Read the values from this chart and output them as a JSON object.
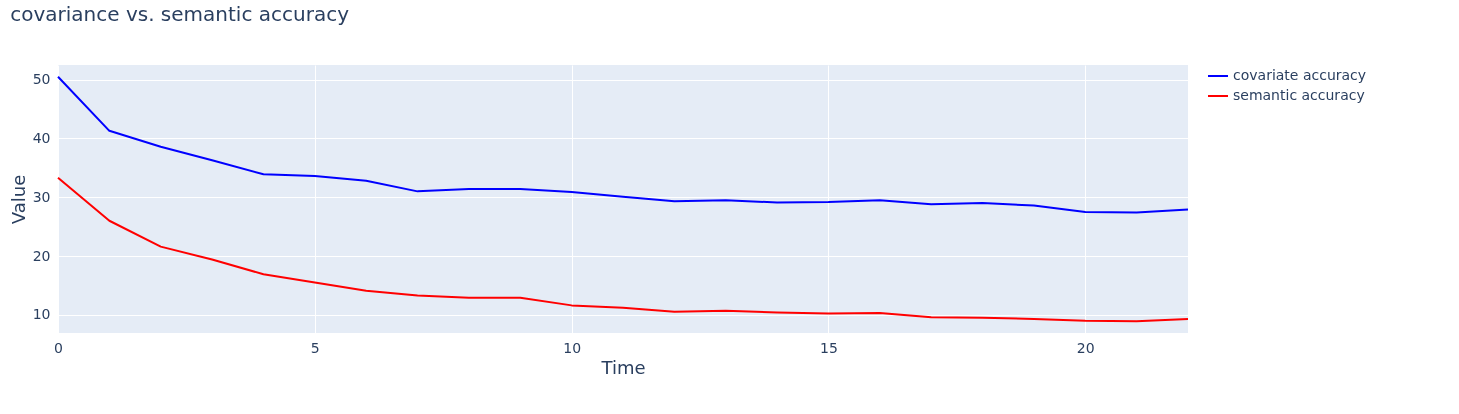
{
  "chart_data": {
    "type": "line",
    "title": "covariance vs. semantic accuracy",
    "xlabel": "Time",
    "ylabel": "Value",
    "x": [
      0,
      1,
      2,
      3,
      4,
      5,
      6,
      7,
      8,
      9,
      10,
      11,
      12,
      13,
      14,
      15,
      16,
      17,
      18,
      19,
      20,
      21,
      22
    ],
    "series": [
      {
        "name": "covariate accuracy",
        "color": "#0000ff",
        "values": [
          50.5,
          41.3,
          38.6,
          36.3,
          33.9,
          33.6,
          32.8,
          31.0,
          31.4,
          31.4,
          30.9,
          30.1,
          29.3,
          29.5,
          29.1,
          29.2,
          29.5,
          28.8,
          29.0,
          28.6,
          27.5,
          27.4,
          27.9
        ]
      },
      {
        "name": "semantic accuracy",
        "color": "#ff0000",
        "values": [
          33.3,
          26.0,
          21.6,
          19.4,
          16.9,
          15.5,
          14.1,
          13.3,
          12.9,
          12.9,
          11.6,
          11.2,
          10.5,
          10.7,
          10.4,
          10.2,
          10.3,
          9.6,
          9.5,
          9.3,
          9.0,
          8.9,
          9.3
        ]
      }
    ],
    "xlim": [
      0,
      22
    ],
    "xticks": [
      0,
      5,
      10,
      15,
      20
    ],
    "ylim": [
      6.9,
      52.5
    ],
    "yticks": [
      10,
      20,
      30,
      40,
      50
    ],
    "grid": true,
    "legend": "top right",
    "marker": "none",
    "line_style": "solid"
  }
}
